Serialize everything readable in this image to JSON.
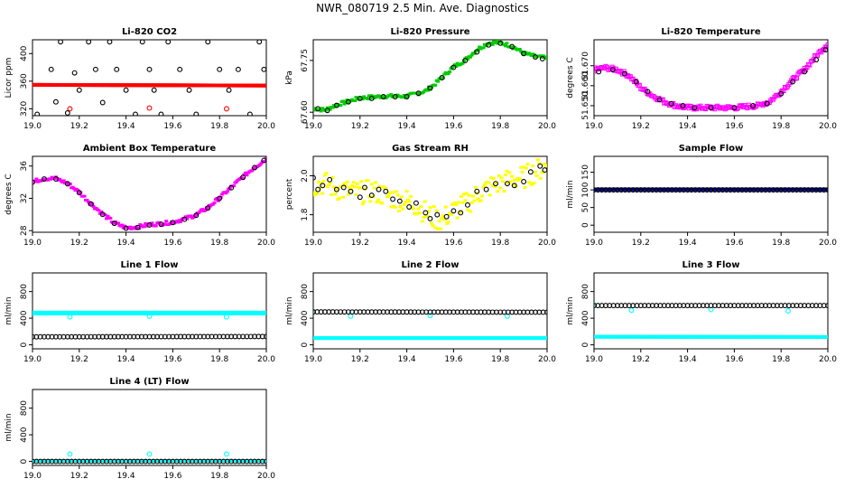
{
  "page": {
    "title": "NWR_080719  2.5 Min. Ave. Diagnostics"
  },
  "chart_data": [
    {
      "type": "scatter",
      "title": "Li-820 CO2",
      "ylabel": "Licor ppm",
      "xlim": [
        19.0,
        20.0
      ],
      "ylim": [
        310,
        420
      ],
      "xticks": [
        "19.0",
        "19.2",
        "19.4",
        "19.6",
        "19.8",
        "20.0"
      ],
      "xtick_values": [
        19.0,
        19.2,
        19.4,
        19.6,
        19.8,
        20.0
      ],
      "yticks": [
        "320",
        "360",
        "400"
      ],
      "ytick_values": [
        320,
        360,
        400
      ],
      "series": [
        {
          "color": "#ff0000",
          "marker": "dot",
          "x": [
            19.0,
            20.0
          ],
          "y": [
            354,
            353
          ],
          "band": true,
          "band_width": 3,
          "extra_x": [
            19.16,
            19.5,
            19.83
          ],
          "extra_y": [
            320,
            321,
            320
          ]
        },
        {
          "color": "#000000",
          "marker": "circle",
          "x": [
            19.02,
            19.08,
            19.1,
            19.12,
            19.15,
            19.18,
            19.2,
            19.24,
            19.27,
            19.3,
            19.33,
            19.36,
            19.4,
            19.44,
            19.47,
            19.5,
            19.52,
            19.55,
            19.58,
            19.63,
            19.67,
            19.7,
            19.75,
            19.8,
            19.84,
            19.88,
            19.93,
            19.97,
            19.99
          ],
          "y": [
            312,
            377,
            330,
            417,
            314,
            372,
            347,
            417,
            377,
            329,
            417,
            377,
            347,
            312,
            417,
            377,
            347,
            312,
            417,
            377,
            347,
            312,
            417,
            377,
            347,
            377,
            312,
            417,
            377
          ]
        }
      ]
    },
    {
      "type": "scatter",
      "title": "Li-820 Pressure",
      "ylabel": "kPa",
      "xlim": [
        19.0,
        20.0
      ],
      "ylim": [
        67.59,
        67.81
      ],
      "xticks": [
        "19.0",
        "19.2",
        "19.4",
        "19.6",
        "19.8",
        "20.0"
      ],
      "xtick_values": [
        19.0,
        19.2,
        19.4,
        19.6,
        19.8,
        20.0
      ],
      "yticks": [
        "67.60",
        "67.75"
      ],
      "ytick_values": [
        67.6,
        67.75
      ],
      "series": [
        {
          "color": "#00cc00",
          "marker": "dot",
          "curve": true,
          "x": [
            19.0,
            19.05,
            19.1,
            19.15,
            19.2,
            19.3,
            19.4,
            19.48,
            19.52,
            19.6,
            19.65,
            19.7,
            19.75,
            19.8,
            19.85,
            19.9,
            19.95,
            20.0
          ],
          "y": [
            67.61,
            67.605,
            67.62,
            67.63,
            67.64,
            67.645,
            67.645,
            67.66,
            67.68,
            67.73,
            67.75,
            67.78,
            67.8,
            67.8,
            67.79,
            67.77,
            67.76,
            67.755
          ]
        },
        {
          "color": "#000000",
          "marker": "circle",
          "x": [
            19.02,
            19.06,
            19.1,
            19.15,
            19.2,
            19.25,
            19.3,
            19.35,
            19.4,
            19.45,
            19.5,
            19.55,
            19.6,
            19.65,
            19.7,
            19.75,
            19.8,
            19.85,
            19.9,
            19.95,
            19.98
          ],
          "y": [
            67.61,
            67.605,
            67.62,
            67.63,
            67.64,
            67.64,
            67.645,
            67.645,
            67.645,
            67.655,
            67.67,
            67.7,
            67.73,
            67.75,
            67.775,
            67.795,
            67.8,
            67.79,
            67.77,
            67.76,
            67.755
          ]
        }
      ]
    },
    {
      "type": "scatter",
      "title": "Li-820 Temperature",
      "ylabel": "degrees C",
      "xlim": [
        19.0,
        20.0
      ],
      "ylim": [
        51.645,
        51.683
      ],
      "xticks": [
        "19.0",
        "19.2",
        "19.4",
        "19.6",
        "19.8",
        "20.0"
      ],
      "xtick_values": [
        19.0,
        19.2,
        19.4,
        19.6,
        19.8,
        20.0
      ],
      "yticks": [
        "51.650",
        "51.660",
        "51.670"
      ],
      "ytick_values": [
        51.65,
        51.66,
        51.67
      ],
      "series": [
        {
          "color": "#ff00ff",
          "marker": "square",
          "curve": true,
          "x": [
            19.0,
            19.05,
            19.1,
            19.15,
            19.2,
            19.25,
            19.3,
            19.35,
            19.4,
            19.5,
            19.6,
            19.7,
            19.75,
            19.8,
            19.85,
            19.9,
            19.95,
            20.0
          ],
          "y": [
            51.668,
            51.669,
            51.668,
            51.665,
            51.659,
            51.655,
            51.652,
            51.65,
            51.649,
            51.649,
            51.649,
            51.65,
            51.652,
            51.657,
            51.663,
            51.668,
            51.675,
            51.681
          ]
        },
        {
          "color": "#000000",
          "marker": "circle",
          "x": [
            19.02,
            19.08,
            19.13,
            19.18,
            19.23,
            19.28,
            19.33,
            19.38,
            19.43,
            19.5,
            19.6,
            19.68,
            19.74,
            19.8,
            19.85,
            19.9,
            19.95,
            19.99
          ],
          "y": [
            51.667,
            51.668,
            51.666,
            51.662,
            51.657,
            51.653,
            51.651,
            51.65,
            51.649,
            51.649,
            51.649,
            51.65,
            51.651,
            51.656,
            51.662,
            51.667,
            51.673,
            51.678
          ]
        }
      ]
    },
    {
      "type": "scatter",
      "title": "Ambient Box Temperature",
      "ylabel": "degrees C",
      "xlim": [
        19.0,
        20.0
      ],
      "ylim": [
        27.8,
        37.2
      ],
      "xticks": [
        "19.0",
        "19.2",
        "19.4",
        "19.6",
        "19.8",
        "20.0"
      ],
      "xtick_values": [
        19.0,
        19.2,
        19.4,
        19.6,
        19.8,
        20.0
      ],
      "yticks": [
        "28",
        "32",
        "36"
      ],
      "ytick_values": [
        28,
        32,
        36
      ],
      "series": [
        {
          "color": "#ff00ff",
          "marker": "dot",
          "curve": true,
          "x": [
            19.0,
            19.05,
            19.1,
            19.15,
            19.2,
            19.25,
            19.3,
            19.35,
            19.4,
            19.45,
            19.5,
            19.55,
            19.6,
            19.65,
            19.7,
            19.75,
            19.8,
            19.85,
            19.9,
            19.95,
            20.0
          ],
          "y": [
            34.0,
            34.4,
            34.4,
            33.8,
            32.7,
            31.3,
            30.0,
            28.9,
            28.3,
            28.4,
            28.7,
            28.8,
            29.0,
            29.4,
            29.9,
            30.8,
            32.0,
            33.3,
            34.6,
            35.8,
            36.8
          ]
        },
        {
          "color": "#000000",
          "marker": "circle",
          "x": [
            19.0,
            19.05,
            19.1,
            19.15,
            19.2,
            19.25,
            19.3,
            19.35,
            19.4,
            19.45,
            19.5,
            19.55,
            19.6,
            19.65,
            19.7,
            19.75,
            19.8,
            19.85,
            19.9,
            19.95,
            19.99
          ],
          "y": [
            34.0,
            34.4,
            34.4,
            33.8,
            32.7,
            31.3,
            30.0,
            28.9,
            28.3,
            28.4,
            28.7,
            28.8,
            29.0,
            29.4,
            29.9,
            30.8,
            32.0,
            33.3,
            34.6,
            35.8,
            36.7
          ]
        }
      ]
    },
    {
      "type": "scatter",
      "title": "Gas Stream RH",
      "ylabel": "percent",
      "xlim": [
        19.0,
        20.0
      ],
      "ylim": [
        1.71,
        2.1
      ],
      "xticks": [
        "19.0",
        "19.2",
        "19.4",
        "19.6",
        "19.8",
        "20.0"
      ],
      "xtick_values": [
        19.0,
        19.2,
        19.4,
        19.6,
        19.8,
        20.0
      ],
      "yticks": [
        "1.8",
        "2.0"
      ],
      "ytick_values": [
        1.8,
        2.0
      ],
      "series": [
        {
          "color": "#ffff00",
          "marker": "dot",
          "curve": true,
          "jitter": 0.06,
          "x": [
            19.0,
            19.05,
            19.1,
            19.15,
            19.2,
            19.25,
            19.3,
            19.35,
            19.4,
            19.45,
            19.5,
            19.55,
            19.6,
            19.65,
            19.7,
            19.75,
            19.8,
            19.85,
            19.9,
            19.95,
            20.0
          ],
          "y": [
            1.95,
            1.96,
            1.93,
            1.92,
            1.91,
            1.92,
            1.9,
            1.88,
            1.87,
            1.84,
            1.79,
            1.77,
            1.82,
            1.85,
            1.9,
            1.94,
            1.96,
            1.98,
            1.99,
            2.02,
            2.05
          ]
        },
        {
          "color": "#000000",
          "marker": "circle",
          "x": [
            19.0,
            19.02,
            19.04,
            19.07,
            19.1,
            19.13,
            19.16,
            19.2,
            19.22,
            19.25,
            19.28,
            19.31,
            19.34,
            19.37,
            19.41,
            19.44,
            19.48,
            19.5,
            19.53,
            19.57,
            19.6,
            19.63,
            19.66,
            19.7,
            19.74,
            19.78,
            19.83,
            19.86,
            19.9,
            19.93,
            19.97,
            19.99
          ],
          "y": [
            1.99,
            1.93,
            1.95,
            1.98,
            1.93,
            1.94,
            1.92,
            1.89,
            1.94,
            1.9,
            1.93,
            1.92,
            1.88,
            1.87,
            1.84,
            1.86,
            1.81,
            1.78,
            1.8,
            1.79,
            1.82,
            1.81,
            1.85,
            1.92,
            1.93,
            1.96,
            1.96,
            1.95,
            1.97,
            2.02,
            2.05,
            2.03
          ]
        }
      ]
    },
    {
      "type": "scatter",
      "title": "Sample Flow",
      "ylabel": "ml/min",
      "xlim": [
        19.0,
        20.0
      ],
      "ylim": [
        -20,
        195
      ],
      "xticks": [
        "19.0",
        "19.2",
        "19.4",
        "19.6",
        "19.8",
        "20.0"
      ],
      "xtick_values": [
        19.0,
        19.2,
        19.4,
        19.6,
        19.8,
        20.0
      ],
      "yticks": [
        "0",
        "50",
        "100",
        "150"
      ],
      "ytick_values": [
        0,
        50,
        100,
        150
      ],
      "series": [
        {
          "color": "#000080",
          "marker": "dot",
          "x": [
            19.0,
            20.0
          ],
          "y": [
            100,
            100
          ],
          "band": true,
          "band_width": 3
        },
        {
          "color": "#000000",
          "marker": "circle",
          "x": [
            19.0,
            20.0
          ],
          "y": [
            100,
            100
          ],
          "dense": 60
        }
      ]
    },
    {
      "type": "scatter",
      "title": "Line 1 Flow",
      "ylabel": "ml/min",
      "xlim": [
        19.0,
        20.0
      ],
      "ylim": [
        -60,
        1080
      ],
      "xticks": [
        "19.0",
        "19.2",
        "19.4",
        "19.6",
        "19.8",
        "20.0"
      ],
      "xtick_values": [
        19.0,
        19.2,
        19.4,
        19.6,
        19.8,
        20.0
      ],
      "yticks": [
        "0",
        "400",
        "800"
      ],
      "ytick_values": [
        0,
        400,
        800
      ],
      "series": [
        {
          "color": "#00ffff",
          "marker": "dot",
          "x": [
            19.0,
            20.0
          ],
          "y": [
            470,
            470
          ],
          "band": true,
          "band_width": 4,
          "extra_x": [
            19.16,
            19.5,
            19.83
          ],
          "extra_y": [
            420,
            430,
            420
          ]
        },
        {
          "color": "#000000",
          "marker": "circle",
          "x": [
            19.0,
            20.0
          ],
          "y": [
            120,
            125
          ],
          "dense": 60
        }
      ]
    },
    {
      "type": "scatter",
      "title": "Line 2 Flow",
      "ylabel": "ml/min",
      "xlim": [
        19.0,
        20.0
      ],
      "ylim": [
        -60,
        1080
      ],
      "xticks": [
        "19.0",
        "19.2",
        "19.4",
        "19.6",
        "19.8",
        "20.0"
      ],
      "xtick_values": [
        19.0,
        19.2,
        19.4,
        19.6,
        19.8,
        20.0
      ],
      "yticks": [
        "0",
        "400",
        "800"
      ],
      "ytick_values": [
        0,
        400,
        800
      ],
      "series": [
        {
          "color": "#00ffff",
          "marker": "dot",
          "x": [
            19.0,
            20.0
          ],
          "y": [
            95,
            95
          ],
          "band": true,
          "band_width": 3,
          "extra_x": [
            19.0,
            19.16,
            19.5,
            19.83
          ],
          "extra_y": [
            500,
            430,
            440,
            430
          ]
        },
        {
          "color": "#000000",
          "marker": "circle",
          "x": [
            19.0,
            20.0
          ],
          "y": [
            495,
            490
          ],
          "dense": 60
        }
      ]
    },
    {
      "type": "scatter",
      "title": "Line 3 Flow",
      "ylabel": "ml/min",
      "xlim": [
        19.0,
        20.0
      ],
      "ylim": [
        -60,
        1080
      ],
      "xticks": [
        "19.0",
        "19.2",
        "19.4",
        "19.6",
        "19.8",
        "20.0"
      ],
      "xtick_values": [
        19.0,
        19.2,
        19.4,
        19.6,
        19.8,
        20.0
      ],
      "yticks": [
        "0",
        "400",
        "800"
      ],
      "ytick_values": [
        0,
        400,
        800
      ],
      "series": [
        {
          "color": "#00ffff",
          "marker": "dot",
          "x": [
            19.0,
            20.0
          ],
          "y": [
            115,
            110
          ],
          "band": true,
          "band_width": 3,
          "extra_x": [
            19.0,
            19.16,
            19.5,
            19.83
          ],
          "extra_y": [
            600,
            520,
            530,
            510
          ]
        },
        {
          "color": "#000000",
          "marker": "circle",
          "x": [
            19.0,
            20.0
          ],
          "y": [
            590,
            590
          ],
          "dense": 60
        }
      ]
    },
    {
      "type": "scatter",
      "title": "Line 4 (LT) Flow",
      "ylabel": "ml/min",
      "xlim": [
        19.0,
        20.0
      ],
      "ylim": [
        -60,
        1080
      ],
      "xticks": [
        "19.0",
        "19.2",
        "19.4",
        "19.6",
        "19.8",
        "20.0"
      ],
      "xtick_values": [
        19.0,
        19.2,
        19.4,
        19.6,
        19.8,
        20.0
      ],
      "yticks": [
        "0",
        "400",
        "800"
      ],
      "ytick_values": [
        0,
        400,
        800
      ],
      "series": [
        {
          "color": "#00ffff",
          "marker": "circle",
          "x": [
            19.16,
            19.5,
            19.83
          ],
          "y": [
            110,
            110,
            110
          ]
        },
        {
          "color": "#00ffff",
          "marker": "dot",
          "x": [
            19.0,
            20.0
          ],
          "y": [
            0,
            0
          ],
          "band": true,
          "band_width": 2
        },
        {
          "color": "#000000",
          "marker": "circle",
          "x": [
            19.0,
            20.0
          ],
          "y": [
            0,
            0
          ],
          "dense": 60
        }
      ]
    }
  ]
}
